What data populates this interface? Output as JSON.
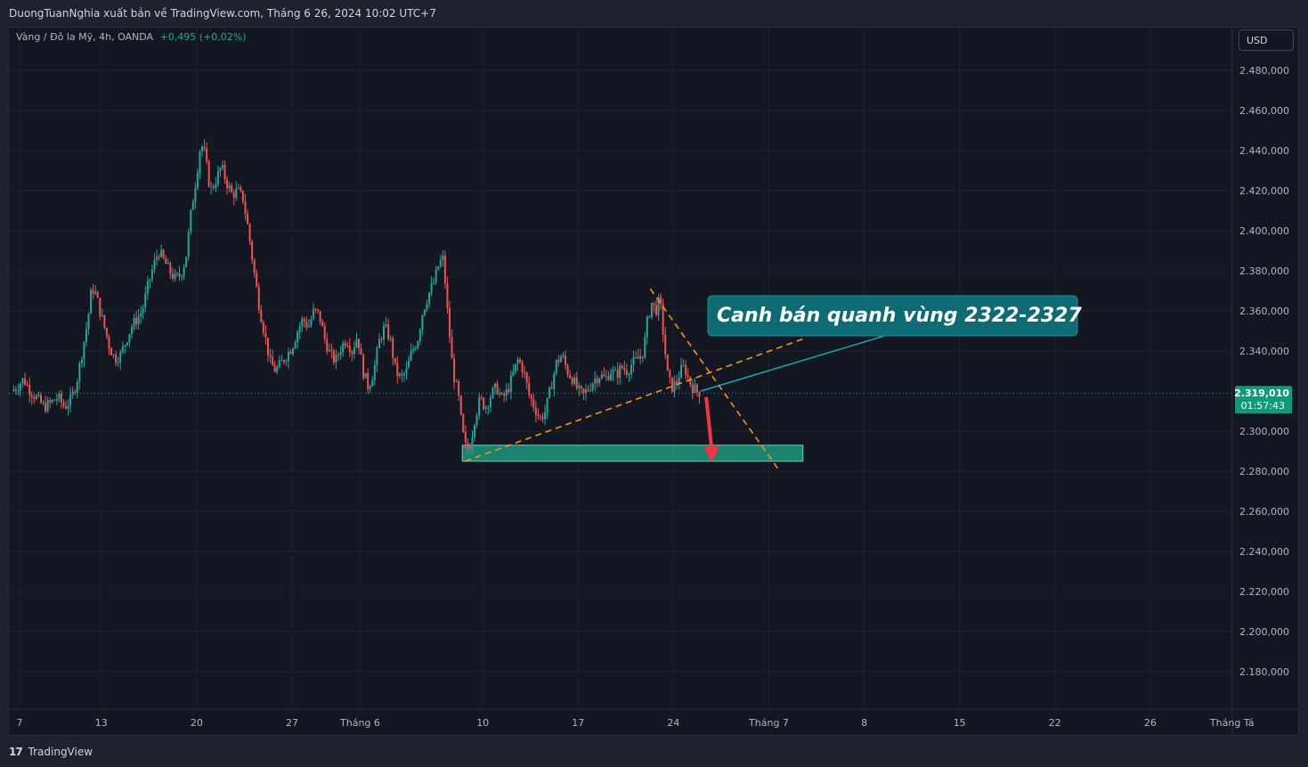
{
  "header": {
    "publisher_line": "DuongTuanNghia xuất bản về TradingView.com, Tháng 6 26, 2024 10:02 UTC+7"
  },
  "legend": {
    "symbol": "Vàng / Đô la Mỹ, 4h, OANDA",
    "change": "+0,495 (+0,02%)"
  },
  "currency_button": {
    "label": "USD"
  },
  "footer": {
    "logo_mark": "17",
    "brand": "TradingView"
  },
  "colors": {
    "up": "#26a69a",
    "down": "#ef5350",
    "trendline": "#f7931a",
    "zone": "#1fa88a",
    "callout_bg": "#0e6b73",
    "arrow": "#f23645",
    "price_badge": "#0f9a7a"
  },
  "chart_data": {
    "type": "candlestick",
    "timeframe": "4h",
    "y_axis": {
      "ticks": [
        {
          "value": 2480,
          "label": "2.480,000"
        },
        {
          "value": 2460,
          "label": "2.460,000"
        },
        {
          "value": 2440,
          "label": "2.440,000"
        },
        {
          "value": 2420,
          "label": "2.420,000"
        },
        {
          "value": 2400,
          "label": "2.400,000"
        },
        {
          "value": 2380,
          "label": "2.380,000"
        },
        {
          "value": 2360,
          "label": "2.360,000"
        },
        {
          "value": 2340,
          "label": "2.340,000"
        },
        {
          "value": 2300,
          "label": "2.300,000"
        },
        {
          "value": 2280,
          "label": "2.280,000"
        },
        {
          "value": 2260,
          "label": "2.260,000"
        },
        {
          "value": 2240,
          "label": "2.240,000"
        },
        {
          "value": 2220,
          "label": "2.220,000"
        },
        {
          "value": 2200,
          "label": "2.200,000"
        },
        {
          "value": 2180,
          "label": "2.180,000"
        }
      ],
      "range": [
        2168,
        2500
      ]
    },
    "x_axis": {
      "ticks": [
        {
          "day": 7,
          "label": "7"
        },
        {
          "day": 13,
          "label": "13"
        },
        {
          "day": 20,
          "label": "20"
        },
        {
          "day": 27,
          "label": "27"
        },
        {
          "day": 32,
          "label": "Tháng 6"
        },
        {
          "day": 41,
          "label": "10"
        },
        {
          "day": 48,
          "label": "17"
        },
        {
          "day": 55,
          "label": "24"
        },
        {
          "day": 62,
          "label": "Tháng 7"
        },
        {
          "day": 69,
          "label": "8"
        },
        {
          "day": 76,
          "label": "15"
        },
        {
          "day": 83,
          "label": "22"
        },
        {
          "day": 90,
          "label": "26"
        },
        {
          "day": 96,
          "label": "Tháng Tá"
        }
      ]
    },
    "current_price": {
      "value": 2319.01,
      "label": "2.319,010",
      "countdown": "01:57:43"
    },
    "price_path": [
      [
        6.4,
        2320
      ],
      [
        6.8,
        2322
      ],
      [
        7.3,
        2326
      ],
      [
        7.8,
        2320
      ],
      [
        8.3,
        2316
      ],
      [
        8.8,
        2312
      ],
      [
        9.3,
        2314
      ],
      [
        9.8,
        2317
      ],
      [
        10.3,
        2312
      ],
      [
        10.8,
        2316
      ],
      [
        11.2,
        2325
      ],
      [
        11.6,
        2340
      ],
      [
        12,
        2355
      ],
      [
        12.3,
        2372
      ],
      [
        12.6,
        2368
      ],
      [
        12.9,
        2360
      ],
      [
        13.3,
        2350
      ],
      [
        13.6,
        2342
      ],
      [
        14,
        2336
      ],
      [
        14.4,
        2338
      ],
      [
        14.8,
        2345
      ],
      [
        15.2,
        2352
      ],
      [
        15.6,
        2356
      ],
      [
        16,
        2360
      ],
      [
        16.4,
        2372
      ],
      [
        16.8,
        2382
      ],
      [
        17.2,
        2390
      ],
      [
        17.6,
        2385
      ],
      [
        18,
        2380
      ],
      [
        18.4,
        2376
      ],
      [
        18.8,
        2378
      ],
      [
        19.2,
        2386
      ],
      [
        19.6,
        2410
      ],
      [
        20,
        2428
      ],
      [
        20.3,
        2444
      ],
      [
        20.6,
        2438
      ],
      [
        21,
        2420
      ],
      [
        21.4,
        2425
      ],
      [
        21.8,
        2432
      ],
      [
        22.2,
        2424
      ],
      [
        22.6,
        2418
      ],
      [
        23,
        2420
      ],
      [
        23.4,
        2416
      ],
      [
        23.8,
        2400
      ],
      [
        24.2,
        2380
      ],
      [
        24.6,
        2362
      ],
      [
        25,
        2348
      ],
      [
        25.4,
        2334
      ],
      [
        25.8,
        2330
      ],
      [
        26.2,
        2334
      ],
      [
        26.6,
        2338
      ],
      [
        27,
        2342
      ],
      [
        27.4,
        2350
      ],
      [
        27.8,
        2356
      ],
      [
        28.2,
        2352
      ],
      [
        28.6,
        2360
      ],
      [
        29,
        2358
      ],
      [
        29.4,
        2346
      ],
      [
        29.8,
        2338
      ],
      [
        30.2,
        2335
      ],
      [
        30.6,
        2342
      ],
      [
        31,
        2346
      ],
      [
        31.4,
        2340
      ],
      [
        31.8,
        2348
      ],
      [
        32.2,
        2330
      ],
      [
        32.6,
        2322
      ],
      [
        33,
        2330
      ],
      [
        33.4,
        2345
      ],
      [
        33.8,
        2352
      ],
      [
        34.2,
        2346
      ],
      [
        34.6,
        2330
      ],
      [
        35,
        2326
      ],
      [
        35.4,
        2330
      ],
      [
        35.8,
        2340
      ],
      [
        36.2,
        2345
      ],
      [
        36.6,
        2360
      ],
      [
        37,
        2368
      ],
      [
        37.4,
        2374
      ],
      [
        37.8,
        2384
      ],
      [
        38.1,
        2386
      ],
      [
        38.4,
        2360
      ],
      [
        38.8,
        2330
      ],
      [
        39.2,
        2318
      ],
      [
        39.5,
        2300
      ],
      [
        39.8,
        2290
      ],
      [
        40.1,
        2294
      ],
      [
        40.4,
        2306
      ],
      [
        40.8,
        2316
      ],
      [
        41.2,
        2312
      ],
      [
        41.6,
        2318
      ],
      [
        42,
        2322
      ],
      [
        42.4,
        2316
      ],
      [
        42.8,
        2320
      ],
      [
        43.2,
        2328
      ],
      [
        43.6,
        2336
      ],
      [
        44,
        2330
      ],
      [
        44.4,
        2318
      ],
      [
        44.8,
        2312
      ],
      [
        45.2,
        2306
      ],
      [
        45.6,
        2310
      ],
      [
        46,
        2322
      ],
      [
        46.4,
        2334
      ],
      [
        46.8,
        2338
      ],
      [
        47.2,
        2330
      ],
      [
        47.6,
        2326
      ],
      [
        48,
        2320
      ],
      [
        48.4,
        2318
      ],
      [
        48.8,
        2322
      ],
      [
        49.2,
        2326
      ],
      [
        49.6,
        2328
      ],
      [
        50,
        2326
      ],
      [
        50.4,
        2330
      ],
      [
        50.8,
        2328
      ],
      [
        51.2,
        2332
      ],
      [
        51.6,
        2330
      ],
      [
        52,
        2334
      ],
      [
        52.4,
        2336
      ],
      [
        52.8,
        2340
      ],
      [
        53.1,
        2356
      ],
      [
        53.4,
        2364
      ],
      [
        53.7,
        2360
      ],
      [
        54,
        2366
      ],
      [
        54.3,
        2345
      ],
      [
        54.6,
        2326
      ],
      [
        54.9,
        2322
      ],
      [
        55.2,
        2324
      ],
      [
        55.5,
        2330
      ],
      [
        55.8,
        2332
      ],
      [
        56.1,
        2326
      ],
      [
        56.4,
        2322
      ],
      [
        56.7,
        2320
      ],
      [
        57,
        2319
      ]
    ],
    "annotations": [
      {
        "type": "zone",
        "from_day": 39.5,
        "to_day": 64.5,
        "y_low": 2285,
        "y_high": 2293
      },
      {
        "type": "trendline",
        "style": "dashed",
        "points": [
          [
            39.7,
            2285
          ],
          [
            64.5,
            2346
          ]
        ]
      },
      {
        "type": "trendline",
        "style": "dashed",
        "points": [
          [
            53.3,
            2371
          ],
          [
            62.8,
            2280
          ]
        ]
      },
      {
        "type": "arrow",
        "direction": "down",
        "from": [
          57.4,
          2317
        ],
        "to": [
          57.8,
          2286
        ]
      },
      {
        "type": "callout",
        "text": "Canh bán quanh vùng 2322-2327",
        "anchor": [
          57.0,
          2320
        ]
      }
    ]
  }
}
